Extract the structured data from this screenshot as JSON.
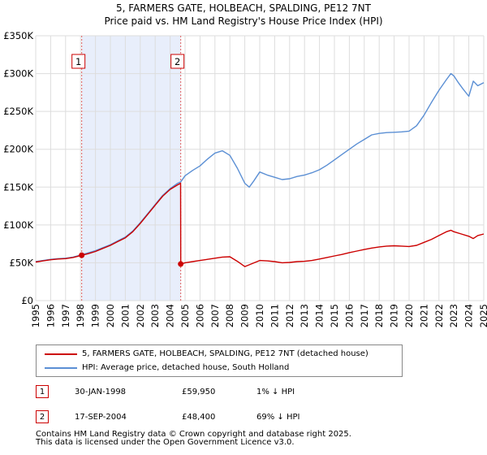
{
  "chart_data": {
    "type": "line",
    "title": "5, FARMERS GATE, HOLBEACH, SPALDING, PE12 7NT",
    "subtitle": "Price paid vs. HM Land Registry's House Price Index (HPI)",
    "xlabel": "",
    "ylabel": "",
    "xlim": [
      1995,
      2025
    ],
    "ylim": [
      0,
      350000
    ],
    "y_ticks": [
      0,
      50000,
      100000,
      150000,
      200000,
      250000,
      300000,
      350000
    ],
    "y_tick_labels": [
      "£0",
      "£50K",
      "£100K",
      "£150K",
      "£200K",
      "£250K",
      "£300K",
      "£350K"
    ],
    "x_ticks": [
      1995,
      1996,
      1997,
      1998,
      1999,
      2000,
      2001,
      2002,
      2003,
      2004,
      2005,
      2006,
      2007,
      2008,
      2009,
      2010,
      2011,
      2012,
      2013,
      2014,
      2015,
      2016,
      2017,
      2018,
      2019,
      2020,
      2021,
      2022,
      2023,
      2024,
      2025
    ],
    "grid": true,
    "shaded_period": [
      1998.08,
      2004.71
    ],
    "series": [
      {
        "name": "5, FARMERS GATE, HOLBEACH, SPALDING, PE12 7NT (detached house)",
        "color": "#cc0000",
        "x": [
          1995,
          1995.5,
          1996,
          1996.5,
          1997,
          1997.5,
          1998.08,
          1998.5,
          1999,
          1999.5,
          2000,
          2000.5,
          2001,
          2001.5,
          2002,
          2002.5,
          2003,
          2003.5,
          2004,
          2004.5,
          2004.7,
          2004.71,
          2005,
          2005.5,
          2006,
          2006.5,
          2007,
          2007.5,
          2008,
          2008.5,
          2009,
          2009.5,
          2010,
          2010.5,
          2011,
          2011.5,
          2012,
          2012.5,
          2013,
          2013.5,
          2014,
          2014.5,
          2015,
          2015.5,
          2016,
          2016.5,
          2017,
          2017.5,
          2018,
          2018.5,
          2019,
          2019.5,
          2020,
          2020.5,
          2021,
          2021.5,
          2022,
          2022.5,
          2022.8,
          2023,
          2023.5,
          2024,
          2024.3,
          2024.6,
          2025
        ],
        "y": [
          51000,
          52500,
          54000,
          55000,
          55500,
          57000,
          59950,
          62000,
          65000,
          69000,
          73000,
          78000,
          83000,
          91000,
          102000,
          114000,
          126000,
          138000,
          147000,
          153000,
          155000,
          48400,
          50000,
          51500,
          53000,
          54500,
          56000,
          57500,
          58000,
          52000,
          45000,
          49000,
          53000,
          52500,
          51500,
          50000,
          50500,
          51500,
          52000,
          53000,
          55000,
          57000,
          59000,
          61000,
          63500,
          65500,
          67500,
          69500,
          71000,
          72000,
          72500,
          72000,
          71500,
          73000,
          77000,
          81000,
          86000,
          91000,
          93000,
          91000,
          88000,
          85000,
          82000,
          86000,
          88000
        ]
      },
      {
        "name": "HPI: Average price, detached house, South Holland",
        "color": "#5b8fd4",
        "x": [
          1995,
          1995.5,
          1996,
          1996.5,
          1997,
          1997.5,
          1998.08,
          1998.5,
          1999,
          1999.5,
          2000,
          2000.5,
          2001,
          2001.5,
          2002,
          2002.5,
          2003,
          2003.5,
          2004,
          2004.5,
          2004.71,
          2005,
          2005.5,
          2006,
          2006.5,
          2007,
          2007.5,
          2008,
          2008.5,
          2009,
          2009.3,
          2009.6,
          2010,
          2010.5,
          2011,
          2011.5,
          2012,
          2012.5,
          2013,
          2013.5,
          2014,
          2014.5,
          2015,
          2015.5,
          2016,
          2016.5,
          2017,
          2017.5,
          2018,
          2018.5,
          2019,
          2019.5,
          2020,
          2020.5,
          2021,
          2021.5,
          2022,
          2022.5,
          2022.8,
          2023,
          2023.3,
          2023.6,
          2024,
          2024.3,
          2024.6,
          2025
        ],
        "y": [
          51500,
          53000,
          54500,
          55500,
          56000,
          57500,
          60500,
          63000,
          66000,
          70000,
          74000,
          79000,
          84000,
          92000,
          103000,
          115000,
          127000,
          139000,
          148000,
          155000,
          157000,
          165000,
          172000,
          178000,
          187000,
          195000,
          198000,
          192000,
          175000,
          155000,
          150000,
          158000,
          170000,
          166000,
          163000,
          160000,
          161000,
          164000,
          166000,
          169000,
          173000,
          179000,
          186000,
          193000,
          200000,
          207000,
          213000,
          219000,
          221000,
          222000,
          222500,
          223000,
          224000,
          231000,
          245000,
          262000,
          278000,
          292000,
          300000,
          297000,
          288000,
          280000,
          270000,
          290000,
          284000,
          288000
        ]
      }
    ],
    "sales": [
      {
        "label": "1",
        "date": "30-JAN-1998",
        "x": 1998.08,
        "price": 59950,
        "price_text": "£59,950",
        "hpi_text": "1% ↓ HPI"
      },
      {
        "label": "2",
        "date": "17-SEP-2004",
        "x": 2004.71,
        "price": 48400,
        "price_text": "£48,400",
        "hpi_text": "69% ↓ HPI"
      }
    ],
    "annotations": [
      "1",
      "2"
    ]
  },
  "legend": {
    "items": [
      {
        "label": "5, FARMERS GATE, HOLBEACH, SPALDING, PE12 7NT (detached house)",
        "color": "#cc0000"
      },
      {
        "label": "HPI: Average price, detached house, South Holland",
        "color": "#5b8fd4"
      }
    ]
  },
  "footer": {
    "line1": "Contains HM Land Registry data © Crown copyright and database right 2025.",
    "line2": "This data is licensed under the Open Government Licence v3.0."
  }
}
